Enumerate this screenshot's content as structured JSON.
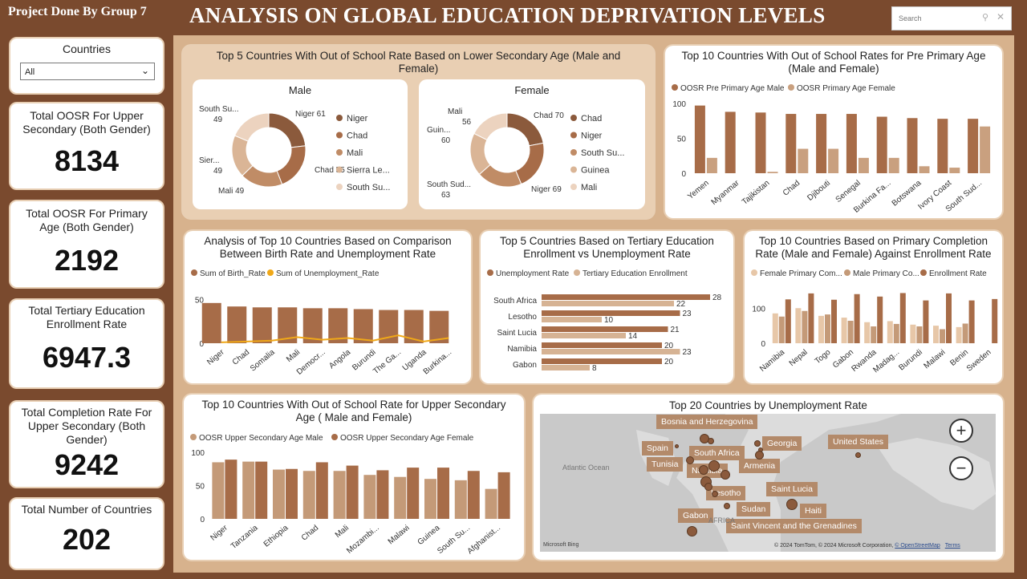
{
  "header": {
    "group_label": "Project Done By Group 7",
    "title": "ANALYSIS ON GLOBAL EDUCATION DEPRIVATION LEVELS",
    "search_placeholder": "Search"
  },
  "icons": {
    "search": "search-icon",
    "close": "close-icon",
    "dropdown": "chevron-down-icon",
    "zoom_in": "plus-icon",
    "zoom_out": "minus-icon"
  },
  "colors": {
    "background": "#7a4a2e",
    "panel": "#d7b28d",
    "dark": "#8b5a3c",
    "mid": "#b07a55",
    "light": "#d6b394",
    "lighter": "#e9d1bd",
    "accent_orange": "#f0a818"
  },
  "slicer": {
    "title": "Countries",
    "value": "All"
  },
  "kpis": [
    {
      "label": "Total OOSR For Upper Secondary (Both Gender)",
      "value": "8134"
    },
    {
      "label": "Total OOSR For Primary Age (Both Gender)",
      "value": "2192"
    },
    {
      "label": "Total Tertiary Education Enrollment Rate",
      "value": "6947.3"
    },
    {
      "label": "Total Completion Rate For Upper Secondary (Both Gender)",
      "value": "9242"
    },
    {
      "label": "Total Number of Countries",
      "value": "202"
    }
  ],
  "chart_data": [
    {
      "id": "lower_sec",
      "type": "pie",
      "title": "Top 5 Countries With Out of School Rate Based on Lower Secondary Age (Male and Female)",
      "panels": [
        {
          "name": "Male",
          "categories": [
            "Niger",
            "Chad",
            "Mali",
            "Sierra Le...",
            "South Su..."
          ],
          "values": [
            61,
            55,
            49,
            49,
            49
          ],
          "slice_labels": [
            "Niger 61",
            "Chad 55",
            "Mali 49",
            "Sier... 49",
            "South Su... 49"
          ]
        },
        {
          "name": "Female",
          "categories": [
            "Chad",
            "Niger",
            "South Su...",
            "Guinea",
            "Mali"
          ],
          "values": [
            70,
            69,
            63,
            60,
            56
          ],
          "slice_labels": [
            "Chad 70",
            "Niger 69",
            "South Sud... 63",
            "Guin... 60",
            "Mali 56"
          ]
        }
      ]
    },
    {
      "id": "pre_primary",
      "type": "bar",
      "title": "Top 10 Countries With Out of School Rates for Pre Primary Age (Male and Female)",
      "categories": [
        "Yemen",
        "Myanmar",
        "Tajikistan",
        "Chad",
        "Djibouti",
        "Senegal",
        "Burkina Fa...",
        "Botswana",
        "Ivory Coast",
        "South Sud..."
      ],
      "series": [
        {
          "name": "OOSR Pre Primary Age Male",
          "values": [
            97,
            88,
            87,
            85,
            85,
            85,
            81,
            79,
            78,
            78
          ]
        },
        {
          "name": "OOSR Primary Age Female",
          "values": [
            22,
            0,
            2,
            35,
            35,
            22,
            22,
            10,
            8,
            67
          ]
        }
      ],
      "ylim": [
        0,
        100
      ],
      "yticks": [
        0,
        50,
        100
      ]
    },
    {
      "id": "birth_unemp",
      "type": "bar",
      "title": "Analysis of Top 10 Countries Based on Comparison Between Birth Rate and Unemployment Rate",
      "categories": [
        "Niger",
        "Chad",
        "Somalia",
        "Mali",
        "Democr...",
        "Angola",
        "Burundi",
        "The Ga...",
        "Uganda",
        "Burkina..."
      ],
      "series": [
        {
          "name": "Sum of Birth_Rate",
          "values": [
            46,
            42,
            41,
            41,
            40,
            40,
            39,
            38,
            38,
            37
          ]
        },
        {
          "name": "Sum of Unemployment_Rate",
          "values": [
            1,
            2,
            3,
            7,
            4,
            6,
            3,
            9,
            2,
            6
          ]
        }
      ],
      "ylim": [
        0,
        55
      ],
      "yticks": [
        0,
        50
      ]
    },
    {
      "id": "tertiary",
      "type": "bar",
      "title": "Top 5 Countries Based on Tertiary Education Enrollment vs Unemployment Rate",
      "categories": [
        "South Africa",
        "Lesotho",
        "Saint Lucia",
        "Namibia",
        "Gabon"
      ],
      "series": [
        {
          "name": "Unemployment Rate",
          "values": [
            28,
            23,
            21,
            20,
            20
          ]
        },
        {
          "name": "Tertiary Education Enrollment",
          "values": [
            22,
            10,
            14,
            23,
            8
          ]
        }
      ],
      "orientation": "horizontal"
    },
    {
      "id": "primary_completion",
      "type": "bar",
      "title": "Top 10 Countries Based on Primary Completion Rate (Male and Female) Against Enrollment Rate",
      "categories": [
        "Namibia",
        "Nepal",
        "Togo",
        "Gabon",
        "Rwanda",
        "Madag...",
        "Burundi",
        "Malawi",
        "Benin",
        "Sweden"
      ],
      "series": [
        {
          "name": "Female Primary Com...",
          "values": [
            85,
            100,
            78,
            73,
            60,
            63,
            53,
            50,
            46,
            0
          ]
        },
        {
          "name": "Male Primary Co...",
          "values": [
            76,
            92,
            82,
            64,
            48,
            55,
            48,
            40,
            56,
            0
          ]
        },
        {
          "name": "Enrollment Rate",
          "values": [
            125,
            142,
            124,
            140,
            133,
            143,
            122,
            142,
            122,
            126
          ]
        }
      ],
      "ylim": [
        0,
        160
      ],
      "yticks": [
        0,
        100
      ]
    },
    {
      "id": "upper_sec",
      "type": "bar",
      "title": "Top 10 Countries With Out of School Rate for Upper Secondary Age ( Male and Female)",
      "categories": [
        "Niger",
        "Tanzania",
        "Ethiopia",
        "Chad",
        "Mali",
        "Mozambi...",
        "Malawi",
        "Guinea",
        "South Su...",
        "Afghanist..."
      ],
      "series": [
        {
          "name": "OOSR Upper Secondary Age Male",
          "values": [
            85,
            86,
            74,
            72,
            72,
            66,
            63,
            60,
            58,
            45
          ]
        },
        {
          "name": "OOSR Upper Secondary Age Female",
          "values": [
            89,
            86,
            75,
            85,
            80,
            73,
            77,
            77,
            72,
            70
          ]
        }
      ],
      "ylim": [
        0,
        100
      ],
      "yticks": [
        0,
        50,
        100
      ]
    }
  ],
  "map": {
    "title": "Top 20 Countries by Unemployment Rate",
    "labels": [
      "Bosnia and Herzegovina",
      "Spain",
      "Tunisia",
      "South Africa",
      "Namibia",
      "Georgia",
      "Armenia",
      "United States",
      "Lesotho",
      "Saint Lucia",
      "Gabon",
      "Sudan",
      "Haiti",
      "Saint Vincent and the Grenadines"
    ],
    "base_labels": [
      "Atlantic Ocean",
      "AFRICA"
    ],
    "attribution": "© 2024 TomTom, © 2024 Microsoft Corporation,",
    "osm_link": "© OpenStreetMap",
    "terms": "Terms",
    "logo": "Microsoft Bing"
  }
}
